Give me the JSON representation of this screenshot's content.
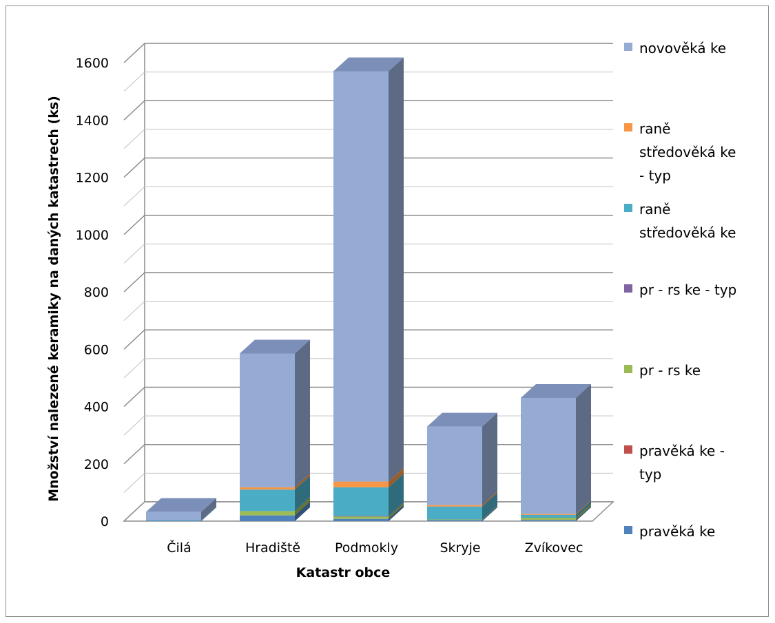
{
  "chart_data": {
    "type": "bar",
    "stacked": true,
    "three_d": true,
    "categories": [
      "Čilá",
      "Hradiště",
      "Podmokly",
      "Skryje",
      "Zvíkovec"
    ],
    "series": [
      {
        "name": "pravěká ke",
        "color": "#4f81bd",
        "values": [
          2,
          20,
          8,
          4,
          4
        ]
      },
      {
        "name": "pravěká ke - typ",
        "color": "#c0504d",
        "values": [
          0,
          0,
          0,
          0,
          0
        ]
      },
      {
        "name": "pr - rs ke",
        "color": "#9bbb59",
        "values": [
          0,
          15,
          8,
          2,
          8
        ]
      },
      {
        "name": "pr - rs ke - typ",
        "color": "#8064a2",
        "values": [
          0,
          0,
          2,
          0,
          0
        ]
      },
      {
        "name": "raně středověká ke",
        "color": "#4bacc6",
        "values": [
          2,
          75,
          100,
          45,
          10
        ]
      },
      {
        "name": "raně středověká ke - typ",
        "color": "#f79646",
        "values": [
          0,
          8,
          20,
          5,
          3
        ]
      },
      {
        "name": "novověká ke",
        "color": "#95abd4",
        "values": [
          28,
          467,
          1432,
          274,
          405
        ]
      }
    ],
    "legend_order": [
      "novověká ke",
      "raně středověká ke - typ",
      "raně středověká ke",
      "pr - rs ke - typ",
      "pr - rs ke",
      "pravěká ke - typ",
      "pravěká ke"
    ],
    "legend_lines": [
      [
        "novověká ke"
      ],
      [
        "raně",
        "středověká ke",
        "- typ"
      ],
      [
        "raně",
        "středověká ke"
      ],
      [
        "pr - rs ke - typ"
      ],
      [
        "pr - rs ke"
      ],
      [
        "pravěká ke -",
        "typ"
      ],
      [
        "pravěká ke"
      ]
    ],
    "ylim": [
      0,
      1600
    ],
    "yticks": [
      "0",
      "200",
      "400",
      "600",
      "800",
      "1000",
      "1200",
      "1400",
      "1600"
    ],
    "ylabel": "Množství nalezené keramiky na daných katastrech (ks)",
    "xlabel": "Katastr obce",
    "grid": true,
    "legend_position": "right"
  }
}
